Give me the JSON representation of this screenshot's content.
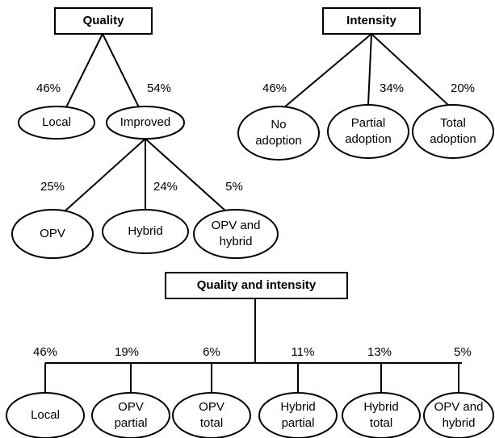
{
  "quality": {
    "title": "Quality",
    "children": [
      {
        "share": "46%",
        "label": [
          "Local"
        ]
      },
      {
        "share": "54%",
        "label": [
          "Improved"
        ],
        "children": [
          {
            "share": "25%",
            "label": [
              "OPV"
            ]
          },
          {
            "share": "24%",
            "label": [
              "Hybrid"
            ]
          },
          {
            "share": "5%",
            "label": [
              "OPV and",
              "hybrid"
            ]
          }
        ]
      }
    ]
  },
  "intensity": {
    "title": "Intensity",
    "children": [
      {
        "share": "46%",
        "label": [
          "No",
          "adoption"
        ]
      },
      {
        "share": "34%",
        "label": [
          "Partial",
          "adoption"
        ]
      },
      {
        "share": "20%",
        "label": [
          "Total",
          "adoption"
        ]
      }
    ]
  },
  "quality_and_intensity": {
    "title": "Quality and intensity",
    "children": [
      {
        "share": "46%",
        "label": [
          "Local"
        ]
      },
      {
        "share": "19%",
        "label": [
          "OPV",
          "partial"
        ]
      },
      {
        "share": "6%",
        "label": [
          "OPV",
          "total"
        ]
      },
      {
        "share": "11%",
        "label": [
          "Hybrid",
          "partial"
        ]
      },
      {
        "share": "13%",
        "label": [
          "Hybrid",
          "total"
        ]
      },
      {
        "share": "5%",
        "label": [
          "OPV and",
          "hybrid"
        ]
      }
    ]
  }
}
